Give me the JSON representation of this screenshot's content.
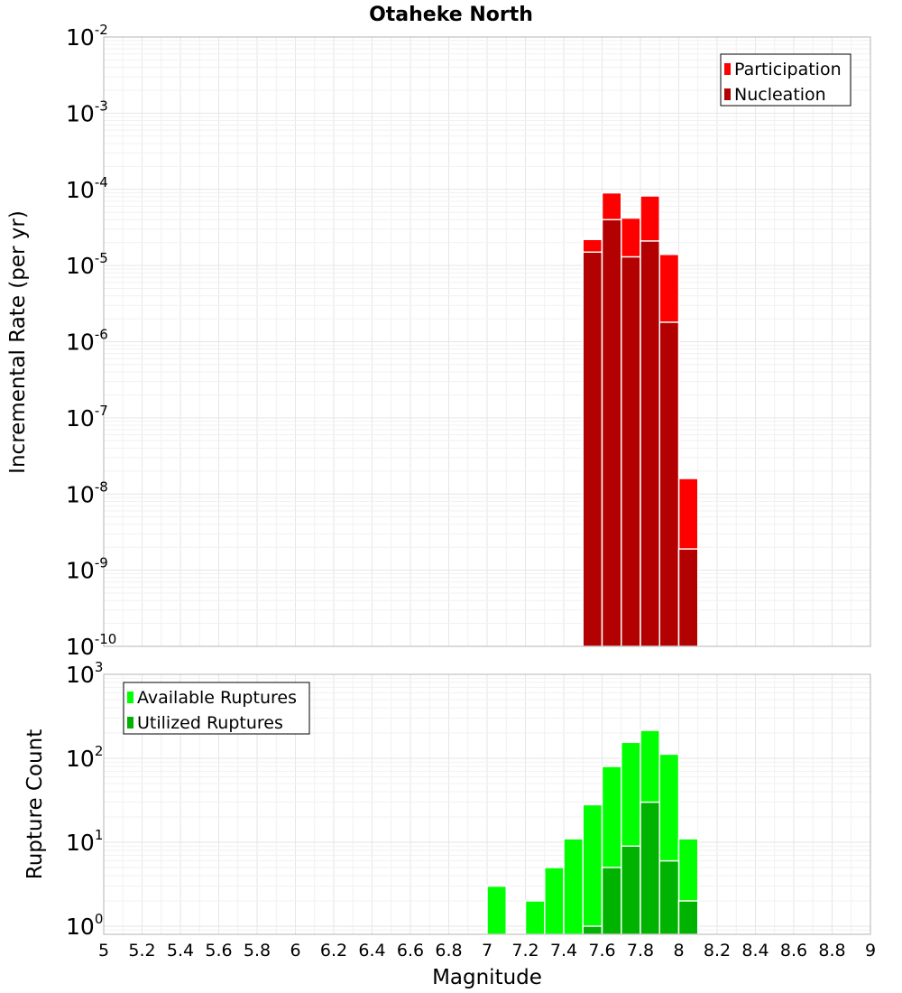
{
  "title": "Otaheke North",
  "colors": {
    "participation": "#ff0000",
    "nucleation": "#b30000",
    "available": "#00ff00",
    "utilized": "#00b300",
    "bar_outline": "#ffffff",
    "frame": "#b4b4b4"
  },
  "chart_data": [
    {
      "id": "rate",
      "type": "bar",
      "ylabel": "Incremental Rate (per yr)",
      "yscale": "log",
      "ylim": [
        1e-10,
        0.01
      ],
      "xlim": [
        5,
        9
      ],
      "grid": true,
      "legend_position": "top-right",
      "y_ticks": [
        {
          "base": "10",
          "exp": "-2",
          "value": 0.01
        },
        {
          "base": "10",
          "exp": "-3",
          "value": 0.001
        },
        {
          "base": "10",
          "exp": "-4",
          "value": 0.0001
        },
        {
          "base": "10",
          "exp": "-5",
          "value": 1e-05
        },
        {
          "base": "10",
          "exp": "-6",
          "value": 1e-06
        },
        {
          "base": "10",
          "exp": "-7",
          "value": 1e-07
        },
        {
          "base": "10",
          "exp": "-8",
          "value": 1e-08
        },
        {
          "base": "10",
          "exp": "-9",
          "value": 1e-09
        },
        {
          "base": "10",
          "exp": "-10",
          "value": 1e-10
        }
      ],
      "bin_width": 0.1,
      "series": [
        {
          "name": "Participation",
          "color": "#ff0000",
          "x": [
            7.55,
            7.65,
            7.75,
            7.85,
            7.95,
            8.05
          ],
          "values": [
            2.2e-05,
            9e-05,
            4.2e-05,
            8.2e-05,
            1.4e-05,
            1.6e-08
          ]
        },
        {
          "name": "Nucleation",
          "color": "#b30000",
          "x": [
            7.55,
            7.65,
            7.75,
            7.85,
            7.95,
            8.05
          ],
          "values": [
            1.5e-05,
            4e-05,
            1.3e-05,
            2.1e-05,
            1.8e-06,
            1.9e-09
          ]
        }
      ]
    },
    {
      "id": "count",
      "type": "bar",
      "ylabel": "Rupture Count",
      "yscale": "log",
      "ylim": [
        0.8,
        1000
      ],
      "xlim": [
        5,
        9
      ],
      "grid": true,
      "legend_position": "top-left",
      "y_ticks": [
        {
          "base": "10",
          "exp": "3",
          "value": 1000
        },
        {
          "base": "10",
          "exp": "2",
          "value": 100
        },
        {
          "base": "10",
          "exp": "1",
          "value": 10
        },
        {
          "base": "10",
          "exp": "0",
          "value": 1
        }
      ],
      "bin_width": 0.1,
      "series": [
        {
          "name": "Available Ruptures",
          "color": "#00ff00",
          "x": [
            7.05,
            7.25,
            7.35,
            7.45,
            7.55,
            7.65,
            7.75,
            7.85,
            7.95,
            8.05
          ],
          "values": [
            3,
            2,
            5,
            11,
            28,
            80,
            155,
            215,
            112,
            11
          ]
        },
        {
          "name": "Utilized Ruptures",
          "color": "#00b300",
          "x": [
            7.55,
            7.65,
            7.75,
            7.85,
            7.95,
            8.05
          ],
          "values": [
            1,
            5,
            9,
            30,
            6,
            2
          ]
        }
      ]
    }
  ],
  "x_axis": {
    "label": "Magnitude",
    "ticks": [
      "5",
      "5.2",
      "5.4",
      "5.6",
      "5.8",
      "6",
      "6.2",
      "6.4",
      "6.6",
      "6.8",
      "7",
      "7.2",
      "7.4",
      "7.6",
      "7.8",
      "8",
      "8.2",
      "8.4",
      "8.6",
      "8.8",
      "9"
    ],
    "tick_values": [
      5,
      5.2,
      5.4,
      5.6,
      5.8,
      6,
      6.2,
      6.4,
      6.6,
      6.8,
      7,
      7.2,
      7.4,
      7.6,
      7.8,
      8,
      8.2,
      8.4,
      8.6,
      8.8,
      9
    ]
  }
}
